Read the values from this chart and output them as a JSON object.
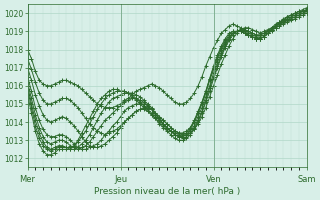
{
  "bg_color": "#d8efe8",
  "grid_color": "#b0d8c8",
  "line_color": "#2d6b2d",
  "marker_color": "#2d6b2d",
  "xlabel": "Pression niveau de la mer( hPa )",
  "ylim": [
    1011.5,
    1020.5
  ],
  "yticks": [
    1012,
    1013,
    1014,
    1015,
    1016,
    1017,
    1018,
    1019,
    1020
  ],
  "day_labels": [
    "Mer",
    "Jeu",
    "Ven",
    "Sam"
  ],
  "day_positions": [
    0,
    24,
    48,
    72
  ],
  "total_points": 73,
  "series": [
    [
      1018.0,
      1017.5,
      1016.8,
      1016.3,
      1016.1,
      1016.0,
      1016.0,
      1016.1,
      1016.2,
      1016.3,
      1016.3,
      1016.2,
      1016.1,
      1016.0,
      1015.8,
      1015.6,
      1015.4,
      1015.2,
      1015.0,
      1014.9,
      1014.8,
      1014.8,
      1014.8,
      1014.9,
      1015.0,
      1015.2,
      1015.3,
      1015.5,
      1015.7,
      1015.8,
      1015.9,
      1016.0,
      1016.1,
      1016.0,
      1015.9,
      1015.7,
      1015.5,
      1015.3,
      1015.1,
      1015.0,
      1015.0,
      1015.1,
      1015.3,
      1015.6,
      1016.0,
      1016.5,
      1017.1,
      1017.6,
      1018.1,
      1018.5,
      1018.9,
      1019.1,
      1019.3,
      1019.4,
      1019.3,
      1019.2,
      1019.1,
      1019.0,
      1018.9,
      1018.8,
      1018.8,
      1018.9,
      1019.0,
      1019.1,
      1019.2,
      1019.3,
      1019.5,
      1019.6,
      1019.8,
      1019.9,
      1020.0,
      1020.1,
      1020.2
    ],
    [
      1017.5,
      1016.9,
      1016.2,
      1015.6,
      1015.2,
      1015.0,
      1015.0,
      1015.1,
      1015.2,
      1015.3,
      1015.3,
      1015.2,
      1015.0,
      1014.8,
      1014.5,
      1014.2,
      1013.9,
      1013.7,
      1013.5,
      1013.4,
      1013.3,
      1013.4,
      1013.5,
      1013.6,
      1013.8,
      1014.0,
      1014.2,
      1014.4,
      1014.6,
      1014.7,
      1014.8,
      1014.8,
      1014.7,
      1014.5,
      1014.3,
      1014.1,
      1013.9,
      1013.7,
      1013.5,
      1013.4,
      1013.3,
      1013.3,
      1013.4,
      1013.6,
      1013.9,
      1014.3,
      1014.8,
      1015.4,
      1016.0,
      1016.6,
      1017.2,
      1017.7,
      1018.2,
      1018.6,
      1018.9,
      1019.1,
      1019.2,
      1019.2,
      1019.1,
      1019.0,
      1018.9,
      1019.0,
      1019.1,
      1019.2,
      1019.3,
      1019.5,
      1019.6,
      1019.8,
      1019.9,
      1020.0,
      1020.1,
      1020.2,
      1020.3
    ],
    [
      1017.0,
      1016.3,
      1015.5,
      1014.9,
      1014.4,
      1014.1,
      1014.0,
      1014.1,
      1014.2,
      1014.3,
      1014.2,
      1014.0,
      1013.8,
      1013.5,
      1013.2,
      1012.9,
      1012.7,
      1012.6,
      1012.6,
      1012.7,
      1012.8,
      1013.0,
      1013.2,
      1013.4,
      1013.7,
      1014.0,
      1014.2,
      1014.4,
      1014.6,
      1014.7,
      1014.7,
      1014.6,
      1014.4,
      1014.2,
      1013.9,
      1013.7,
      1013.5,
      1013.3,
      1013.1,
      1013.0,
      1013.0,
      1013.1,
      1013.3,
      1013.6,
      1014.0,
      1014.5,
      1015.1,
      1015.7,
      1016.4,
      1017.0,
      1017.6,
      1018.1,
      1018.5,
      1018.8,
      1019.0,
      1019.1,
      1019.1,
      1019.0,
      1018.9,
      1018.8,
      1018.8,
      1018.9,
      1019.0,
      1019.2,
      1019.4,
      1019.5,
      1019.7,
      1019.8,
      1019.9,
      1020.0,
      1020.1,
      1020.1,
      1020.2
    ],
    [
      1016.5,
      1015.7,
      1014.8,
      1014.1,
      1013.6,
      1013.3,
      1013.2,
      1013.2,
      1013.3,
      1013.3,
      1013.2,
      1013.0,
      1012.8,
      1012.6,
      1012.5,
      1012.5,
      1012.6,
      1012.7,
      1012.8,
      1013.0,
      1013.3,
      1013.5,
      1013.8,
      1014.0,
      1014.3,
      1014.6,
      1014.8,
      1014.9,
      1015.0,
      1015.0,
      1015.0,
      1014.9,
      1014.7,
      1014.4,
      1014.2,
      1013.9,
      1013.7,
      1013.5,
      1013.3,
      1013.2,
      1013.1,
      1013.2,
      1013.4,
      1013.7,
      1014.1,
      1014.6,
      1015.2,
      1015.9,
      1016.5,
      1017.1,
      1017.7,
      1018.2,
      1018.6,
      1018.9,
      1019.0,
      1019.1,
      1019.0,
      1018.9,
      1018.8,
      1018.7,
      1018.7,
      1018.8,
      1019.0,
      1019.2,
      1019.3,
      1019.5,
      1019.6,
      1019.8,
      1019.9,
      1020.0,
      1020.0,
      1020.1,
      1020.1
    ],
    [
      1016.2,
      1015.3,
      1014.4,
      1013.7,
      1013.2,
      1012.9,
      1012.8,
      1012.9,
      1013.0,
      1013.0,
      1012.9,
      1012.7,
      1012.6,
      1012.5,
      1012.6,
      1012.7,
      1012.9,
      1013.2,
      1013.5,
      1013.8,
      1014.1,
      1014.3,
      1014.5,
      1014.7,
      1014.9,
      1015.1,
      1015.2,
      1015.3,
      1015.3,
      1015.2,
      1015.1,
      1014.9,
      1014.7,
      1014.4,
      1014.2,
      1013.9,
      1013.7,
      1013.5,
      1013.3,
      1013.2,
      1013.2,
      1013.3,
      1013.5,
      1013.8,
      1014.3,
      1014.8,
      1015.4,
      1016.0,
      1016.7,
      1017.3,
      1017.8,
      1018.3,
      1018.7,
      1018.9,
      1019.0,
      1019.0,
      1018.9,
      1018.8,
      1018.7,
      1018.6,
      1018.6,
      1018.7,
      1018.9,
      1019.1,
      1019.3,
      1019.4,
      1019.6,
      1019.7,
      1019.8,
      1019.9,
      1020.0,
      1020.0,
      1020.1
    ],
    [
      1016.0,
      1015.0,
      1014.1,
      1013.4,
      1012.9,
      1012.6,
      1012.5,
      1012.6,
      1012.7,
      1012.7,
      1012.6,
      1012.5,
      1012.5,
      1012.6,
      1012.8,
      1013.0,
      1013.3,
      1013.7,
      1014.1,
      1014.5,
      1014.8,
      1015.1,
      1015.3,
      1015.4,
      1015.5,
      1015.6,
      1015.6,
      1015.6,
      1015.5,
      1015.4,
      1015.2,
      1015.0,
      1014.8,
      1014.5,
      1014.3,
      1014.1,
      1013.9,
      1013.7,
      1013.5,
      1013.4,
      1013.4,
      1013.5,
      1013.7,
      1014.0,
      1014.5,
      1015.0,
      1015.6,
      1016.3,
      1016.9,
      1017.5,
      1018.0,
      1018.4,
      1018.7,
      1018.9,
      1019.0,
      1019.0,
      1018.9,
      1018.8,
      1018.7,
      1018.6,
      1018.6,
      1018.7,
      1018.9,
      1019.1,
      1019.3,
      1019.4,
      1019.5,
      1019.6,
      1019.7,
      1019.8,
      1019.9,
      1020.0,
      1020.0
    ],
    [
      1015.8,
      1014.8,
      1013.8,
      1013.1,
      1012.7,
      1012.5,
      1012.4,
      1012.5,
      1012.6,
      1012.6,
      1012.6,
      1012.6,
      1012.7,
      1012.9,
      1013.2,
      1013.5,
      1013.9,
      1014.3,
      1014.7,
      1015.0,
      1015.3,
      1015.5,
      1015.6,
      1015.7,
      1015.7,
      1015.7,
      1015.6,
      1015.5,
      1015.3,
      1015.1,
      1014.9,
      1014.7,
      1014.5,
      1014.3,
      1014.1,
      1013.9,
      1013.7,
      1013.5,
      1013.4,
      1013.3,
      1013.3,
      1013.4,
      1013.7,
      1014.1,
      1014.6,
      1015.1,
      1015.7,
      1016.4,
      1017.0,
      1017.6,
      1018.1,
      1018.5,
      1018.8,
      1019.0,
      1019.0,
      1019.0,
      1018.9,
      1018.8,
      1018.7,
      1018.6,
      1018.6,
      1018.7,
      1018.9,
      1019.1,
      1019.2,
      1019.4,
      1019.5,
      1019.6,
      1019.7,
      1019.8,
      1019.9,
      1020.0,
      1020.0
    ],
    [
      1015.5,
      1014.5,
      1013.5,
      1012.8,
      1012.4,
      1012.2,
      1012.2,
      1012.3,
      1012.5,
      1012.5,
      1012.5,
      1012.5,
      1012.7,
      1013.0,
      1013.4,
      1013.8,
      1014.2,
      1014.6,
      1015.0,
      1015.3,
      1015.5,
      1015.7,
      1015.8,
      1015.8,
      1015.7,
      1015.7,
      1015.6,
      1015.4,
      1015.2,
      1015.0,
      1014.8,
      1014.6,
      1014.4,
      1014.2,
      1014.0,
      1013.8,
      1013.6,
      1013.5,
      1013.3,
      1013.2,
      1013.2,
      1013.3,
      1013.6,
      1014.0,
      1014.5,
      1015.1,
      1015.7,
      1016.4,
      1017.1,
      1017.7,
      1018.2,
      1018.6,
      1018.9,
      1019.0,
      1019.0,
      1019.0,
      1018.9,
      1018.8,
      1018.7,
      1018.6,
      1018.6,
      1018.7,
      1018.9,
      1019.0,
      1019.2,
      1019.3,
      1019.4,
      1019.5,
      1019.6,
      1019.7,
      1019.8,
      1019.9,
      1020.0
    ]
  ]
}
